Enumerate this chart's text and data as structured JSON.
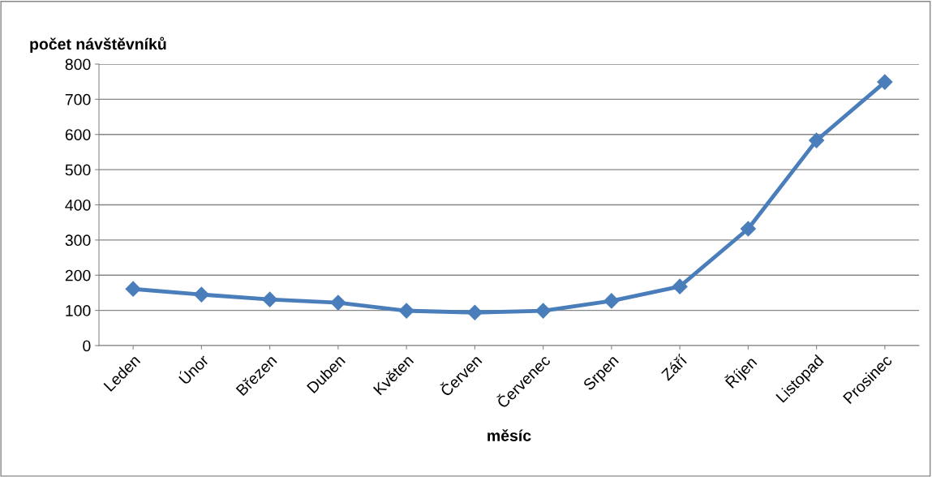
{
  "chart_data": {
    "type": "line",
    "xlabel": "měsíc",
    "ylabel": "počet návštěvníků",
    "categories": [
      "Leden",
      "Únor",
      "Březen",
      "Duben",
      "Květen",
      "Červen",
      "Červenec",
      "Srpen",
      "Září",
      "Říjen",
      "Listopad",
      "Prosinec"
    ],
    "series": [
      {
        "color": "#4a7ebb",
        "values": [
          161,
          145,
          131,
          122,
          99,
          94,
          99,
          127,
          168,
          332,
          583,
          749
        ]
      }
    ],
    "ylim": [
      0,
      800
    ],
    "yticks": [
      0,
      100,
      200,
      300,
      400,
      500,
      600,
      700,
      800
    ],
    "grid": "y",
    "marker": "diamond",
    "line_style": "solid",
    "legend": false
  }
}
